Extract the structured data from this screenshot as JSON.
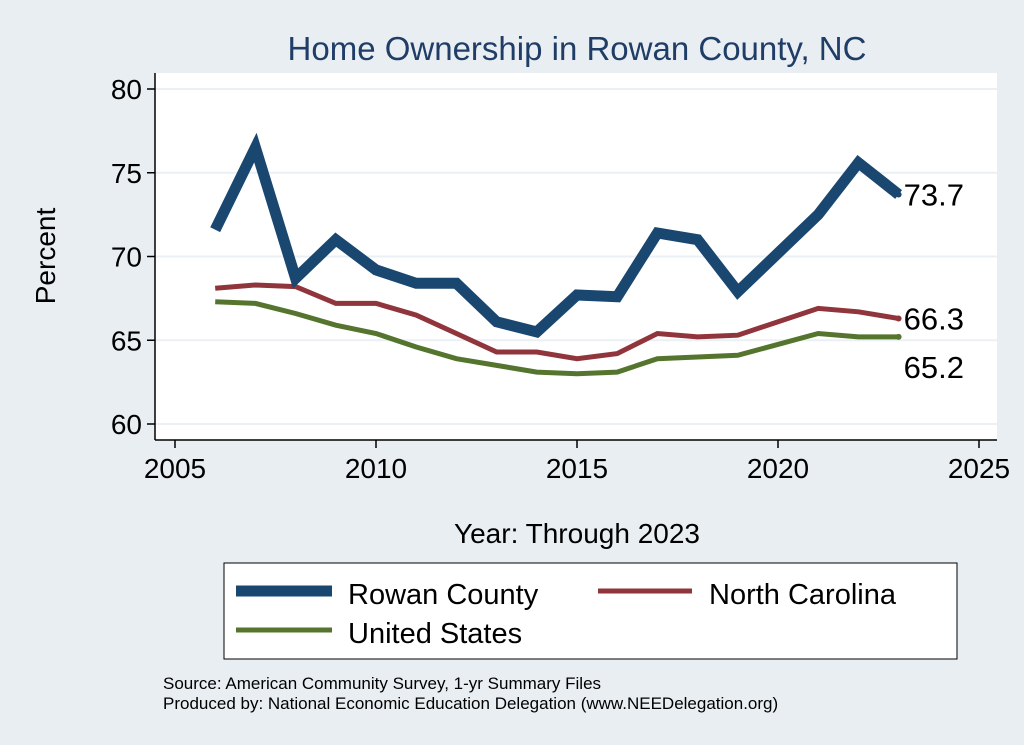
{
  "chart_data": {
    "type": "line",
    "title": "Home Ownership in Rowan County, NC",
    "xlabel": "Year: Through 2023",
    "ylabel": "Percent",
    "xlim": [
      2005,
      2025
    ],
    "ylim": [
      60,
      80
    ],
    "xticks": [
      "2005",
      "2010",
      "2015",
      "2020",
      "2025"
    ],
    "yticks": [
      "60",
      "65",
      "70",
      "75",
      "80"
    ],
    "grid": true,
    "legend_position": "bottom",
    "series": [
      {
        "name": "Rowan County",
        "color": "#1a476f",
        "width": "thick",
        "x": [
          2006,
          2007,
          2008,
          2009,
          2010,
          2011,
          2012,
          2013,
          2014,
          2015,
          2016,
          2017,
          2018,
          2019,
          2021,
          2022,
          2023
        ],
        "values": [
          71.6,
          76.5,
          68.7,
          71.0,
          69.2,
          68.4,
          68.4,
          66.1,
          65.5,
          67.7,
          67.6,
          71.4,
          71.0,
          67.9,
          72.5,
          75.6,
          73.7
        ],
        "end_label": "73.7"
      },
      {
        "name": "North Carolina",
        "color": "#90353b",
        "width": "medium",
        "x": [
          2006,
          2007,
          2008,
          2009,
          2010,
          2011,
          2012,
          2013,
          2014,
          2015,
          2016,
          2017,
          2018,
          2019,
          2021,
          2022,
          2023
        ],
        "values": [
          68.1,
          68.3,
          68.2,
          67.2,
          67.2,
          66.5,
          65.4,
          64.3,
          64.3,
          63.9,
          64.2,
          65.4,
          65.2,
          65.3,
          66.9,
          66.7,
          66.3
        ],
        "end_label": "66.3"
      },
      {
        "name": "United States",
        "color": "#55752f",
        "width": "medium",
        "x": [
          2006,
          2007,
          2008,
          2009,
          2010,
          2011,
          2012,
          2013,
          2014,
          2015,
          2016,
          2017,
          2018,
          2019,
          2021,
          2022,
          2023
        ],
        "values": [
          67.3,
          67.2,
          66.6,
          65.9,
          65.4,
          64.6,
          63.9,
          63.5,
          63.1,
          63.0,
          63.1,
          63.9,
          64.0,
          64.1,
          65.4,
          65.2,
          65.2
        ],
        "end_label": "65.2"
      }
    ]
  },
  "source_note": "Source: American Community Survey, 1-yr Summary Files",
  "producer_note": "Produced by: National Economic Education Delegation (www.NEEDelegation.org)"
}
